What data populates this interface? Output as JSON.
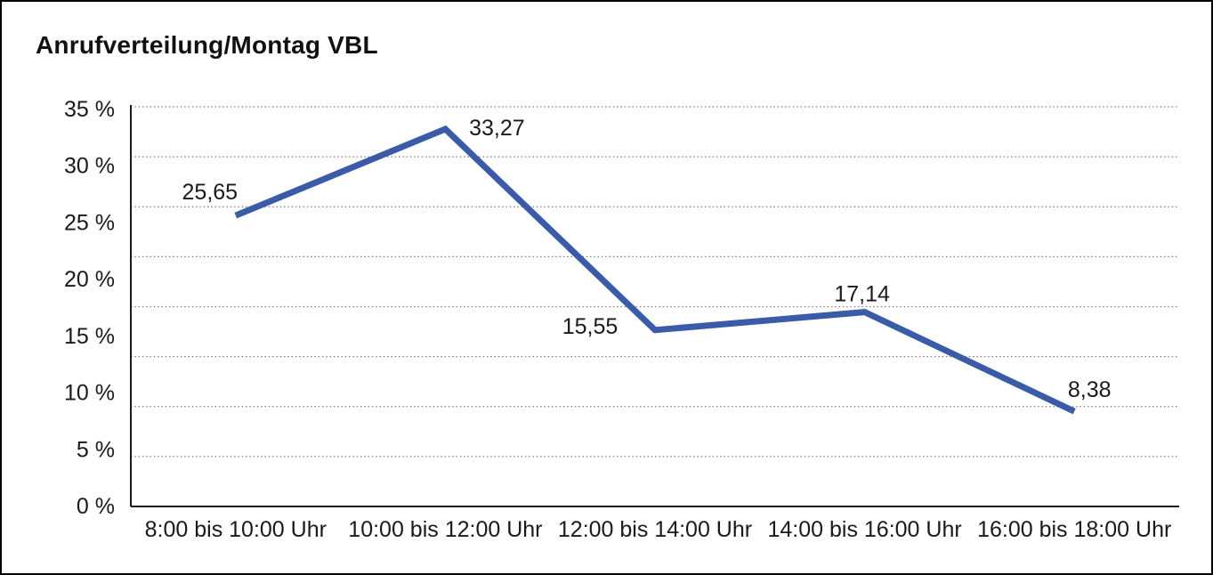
{
  "frame": {
    "background": "#ffffff",
    "border_color": "#000000"
  },
  "chart_data": {
    "type": "line",
    "title": "Anrufverteilung/Montag VBL",
    "categories": [
      "8:00 bis 10:00 Uhr",
      "10:00 bis 12:00 Uhr",
      "12:00 bis 14:00 Uhr",
      "14:00 bis 16:00 Uhr",
      "16:00 bis 18:00 Uhr"
    ],
    "values": [
      25.65,
      33.27,
      15.55,
      17.14,
      8.38
    ],
    "data_labels": [
      "25,65",
      "33,27",
      "15,55",
      "17,14",
      "8,38"
    ],
    "yticks": [
      "0 %",
      "5 %",
      "10 %",
      "15 %",
      "20 %",
      "25 %",
      "30 %",
      "35 %"
    ],
    "ylim": [
      0,
      35
    ],
    "xlabel": "",
    "ylabel": "",
    "legend": "none",
    "grid": "horizontal-dotted",
    "colors": {
      "line": "#3A5BA7",
      "axis": "#1a1a1a",
      "grid": "#7b7b7b",
      "text": "#1a1a1a",
      "title": "#111111"
    }
  }
}
